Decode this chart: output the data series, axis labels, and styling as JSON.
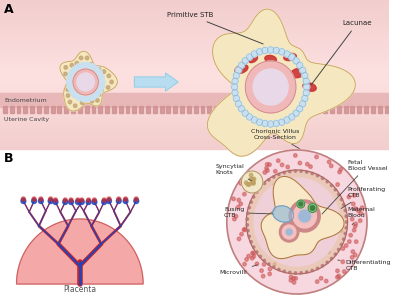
{
  "panel_a_label": "A",
  "panel_b_label": "B",
  "primitive_stb_label": "Primitive STB",
  "lacunae_label": "Lacunae",
  "endometrium_label": "Endometrium",
  "uterine_label": "Uterine Cavity",
  "placenta_label": "Placenta",
  "chorionic_label": "Chorionic Villus\nCross-Section",
  "syncytial_label": "Syncytial\nKnots",
  "fusing_label": "Fusing\nCTB",
  "fetal_label": "Fetal\nBlood Vessel",
  "proliferating_label": "Proliferating\nCTB",
  "maternal_label": "Maternal\nBlood",
  "differentiating_label": "Differentiating\nCTB",
  "microvilli_label": "Microvilli",
  "bg_panel_a_top": "#fce8e8",
  "bg_panel_a_mid": "#f5c8c8",
  "bg_panel_a_bot": "#f0b8b8",
  "endo_color": "#e8a8a8",
  "cilia_color": "#d08888",
  "blob_fill": "#f5e8c0",
  "blob_edge": "#c8a060",
  "ctb_cell_fill": "#c8e0f0",
  "ctb_cell_edge": "#7aaac8",
  "inner_pink": "#f0b8b8",
  "inner_core": "#e8d8e8",
  "lacunae_color": "#cc3333",
  "arrow_fill": "#b8ddf0",
  "placenta_bg": "#f5a8a8",
  "placenta_edge": "#cc6060",
  "trunk_red": "#cc2222",
  "trunk_blue": "#2244bb",
  "villus_outer": "#f8d8e0",
  "villus_mid": "#f0e8d0",
  "villus_stb": "#e09090",
  "villus_ctb": "#f0d0d8",
  "villus_core": "#f8e8c8",
  "fetal_vessel_wall": "#cc8888",
  "fetal_vessel_lumen": "#f5c0c0",
  "fetal_vessel_blue": "#a0b8d8",
  "green_cell": "#80c080",
  "green_nucleus": "#408040",
  "fusing_blue": "#90b8d8",
  "knot_fill": "#f0e8c8",
  "knot_dot": "#c0a060"
}
